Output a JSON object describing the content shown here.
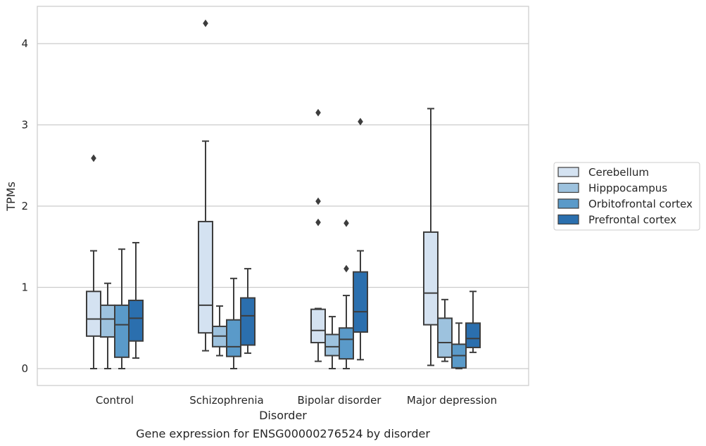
{
  "chart_data": {
    "type": "box",
    "title": "",
    "caption": "Gene expression for ENSG00000276524 by disorder",
    "xlabel": "Disorder",
    "ylabel": "TPMs",
    "ylim": [
      -0.2,
      4.45
    ],
    "yticks": [
      0,
      1,
      2,
      3,
      4
    ],
    "grid": "horizontal",
    "legend_position": "right",
    "categories": [
      "Control",
      "Schizophrenia",
      "Bipolar disorder",
      "Major depression"
    ],
    "series": [
      {
        "name": "Cerebellum",
        "color": "#d4e2f1",
        "boxes": [
          {
            "whislo": 0.0,
            "q1": 0.4,
            "med": 0.61,
            "q3": 0.95,
            "whishi": 1.45,
            "fliers": [
              2.59
            ]
          },
          {
            "whislo": 0.22,
            "q1": 0.44,
            "med": 0.78,
            "q3": 1.81,
            "whishi": 2.8,
            "fliers": [
              4.25
            ]
          },
          {
            "whislo": 0.09,
            "q1": 0.32,
            "med": 0.47,
            "q3": 0.73,
            "whishi": 0.74,
            "fliers": [
              1.8,
              2.06,
              3.15
            ]
          },
          {
            "whislo": 0.04,
            "q1": 0.54,
            "med": 0.93,
            "q3": 1.68,
            "whishi": 3.2,
            "fliers": []
          }
        ]
      },
      {
        "name": "Hipppocampus",
        "color": "#9dc2de",
        "boxes": [
          {
            "whislo": 0.0,
            "q1": 0.39,
            "med": 0.61,
            "q3": 0.78,
            "whishi": 1.05,
            "fliers": []
          },
          {
            "whislo": 0.16,
            "q1": 0.27,
            "med": 0.4,
            "q3": 0.52,
            "whishi": 0.77,
            "fliers": []
          },
          {
            "whislo": 0.0,
            "q1": 0.16,
            "med": 0.27,
            "q3": 0.42,
            "whishi": 0.64,
            "fliers": []
          },
          {
            "whislo": 0.09,
            "q1": 0.14,
            "med": 0.32,
            "q3": 0.62,
            "whishi": 0.85,
            "fliers": []
          }
        ]
      },
      {
        "name": "Orbitofrontal cortex",
        "color": "#5a9ac9",
        "boxes": [
          {
            "whislo": 0.0,
            "q1": 0.14,
            "med": 0.54,
            "q3": 0.78,
            "whishi": 1.47,
            "fliers": []
          },
          {
            "whislo": 0.0,
            "q1": 0.15,
            "med": 0.27,
            "q3": 0.6,
            "whishi": 1.11,
            "fliers": []
          },
          {
            "whislo": 0.0,
            "q1": 0.12,
            "med": 0.36,
            "q3": 0.5,
            "whishi": 0.9,
            "fliers": [
              1.23,
              1.79
            ]
          },
          {
            "whislo": 0.0,
            "q1": 0.01,
            "med": 0.16,
            "q3": 0.3,
            "whishi": 0.56,
            "fliers": []
          }
        ]
      },
      {
        "name": "Prefrontal cortex",
        "color": "#2b6fae",
        "boxes": [
          {
            "whislo": 0.13,
            "q1": 0.34,
            "med": 0.62,
            "q3": 0.84,
            "whishi": 1.55,
            "fliers": []
          },
          {
            "whislo": 0.19,
            "q1": 0.29,
            "med": 0.65,
            "q3": 0.87,
            "whishi": 1.23,
            "fliers": []
          },
          {
            "whislo": 0.11,
            "q1": 0.45,
            "med": 0.7,
            "q3": 1.19,
            "whishi": 1.45,
            "fliers": [
              3.04
            ]
          },
          {
            "whislo": 0.2,
            "q1": 0.26,
            "med": 0.37,
            "q3": 0.56,
            "whishi": 0.95,
            "fliers": []
          }
        ]
      }
    ]
  }
}
